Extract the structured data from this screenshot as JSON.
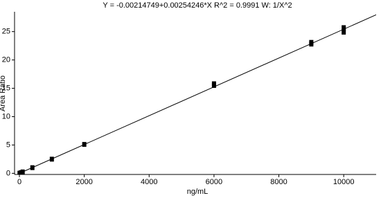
{
  "chart_data": {
    "type": "scatter",
    "title": "Y = -0.00214749+0.00254246*X   R^2 = 0.9991   W: 1/X^2",
    "xlabel": "ng/mL",
    "ylabel": "Area Ratio",
    "xlim": [
      -150,
      11000
    ],
    "ylim": [
      -0.2,
      28.5
    ],
    "xticks": [
      0,
      2000,
      4000,
      6000,
      8000,
      10000
    ],
    "yticks": [
      0,
      5,
      10,
      15,
      20,
      25
    ],
    "series": [
      {
        "type": "scatter",
        "color": "#000000",
        "x": [
          5,
          10,
          50,
          100,
          400,
          1000,
          2000,
          6000,
          6000,
          9000,
          9000,
          10000,
          10000
        ],
        "values": [
          0.01,
          0.02,
          0.12,
          0.25,
          1.0,
          2.5,
          5.1,
          15.5,
          15.8,
          22.8,
          23.1,
          24.9,
          25.7
        ]
      },
      {
        "type": "line",
        "color": "#000000",
        "x": [
          0,
          11000
        ],
        "values": [
          -0.002,
          27.965
        ]
      }
    ]
  }
}
